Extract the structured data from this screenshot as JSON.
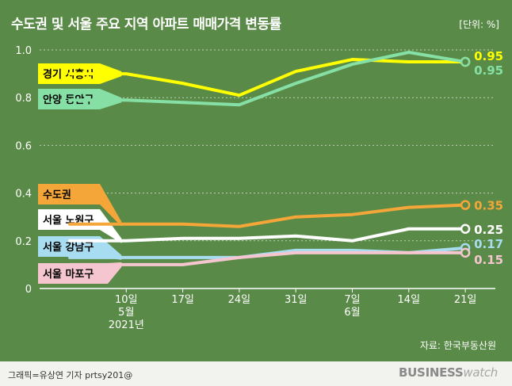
{
  "title": "수도권 및 서울 주요 지역 아파트 매매가격 변동률",
  "unit": "[단위: %]",
  "source": "자료: 한국부동산원",
  "credit": "그래픽=유상연 기자 prtsy201@",
  "brand": {
    "part1": "BUSINESS",
    "part2": "watch"
  },
  "colors": {
    "background": "#5a8a47",
    "footer": "#f2f2ee"
  },
  "chart_data": {
    "type": "line",
    "x_ticks": [
      {
        "lines": [
          "10일",
          "5월",
          "2021년"
        ]
      },
      {
        "lines": [
          "17일"
        ]
      },
      {
        "lines": [
          "24일"
        ]
      },
      {
        "lines": [
          "31일"
        ]
      },
      {
        "lines": [
          "7일",
          "6월"
        ]
      },
      {
        "lines": [
          "14일"
        ]
      },
      {
        "lines": [
          "21일"
        ]
      }
    ],
    "x": [
      "2021-05-03",
      "2021-05-10",
      "2021-05-17",
      "2021-05-24",
      "2021-05-31",
      "2021-06-07",
      "2021-06-14",
      "2021-06-21"
    ],
    "y_ticks": [
      "0",
      "0.2",
      "0.4",
      "0.6",
      "0.8",
      "1.0"
    ],
    "ylim": [
      0,
      1.0
    ],
    "grid": true,
    "series": [
      {
        "name": "경기 시흥시",
        "color": "#ffff00",
        "label_bg": "#ffff00",
        "label_color": "#000000",
        "end_label": "0.95",
        "end_color": "#ffff00",
        "values": [
          0.9,
          0.9,
          0.86,
          0.81,
          0.91,
          0.96,
          0.95,
          0.95
        ]
      },
      {
        "name": "안양 동안구",
        "color": "#86e0a6",
        "label_bg": "#86e0a6",
        "label_color": "#000000",
        "end_label": "0.95",
        "end_color": "#86e0a6",
        "values": [
          0.79,
          0.79,
          0.78,
          0.77,
          0.86,
          0.94,
          0.99,
          0.95
        ]
      },
      {
        "name": "수도권",
        "color": "#f5a638",
        "label_bg": "#f5a638",
        "label_color": "#000000",
        "end_label": "0.35",
        "end_color": "#f5a638",
        "values": [
          0.27,
          0.27,
          0.27,
          0.26,
          0.3,
          0.31,
          0.34,
          0.35
        ]
      },
      {
        "name": "서울 노원구",
        "color": "#ffffff",
        "label_bg": "#ffffff",
        "label_color": "#000000",
        "end_label": "0.25",
        "end_color": "#ffffff",
        "values": [
          0.2,
          0.2,
          0.21,
          0.21,
          0.22,
          0.2,
          0.25,
          0.25
        ]
      },
      {
        "name": "서울 강남구",
        "color": "#a8dcf0",
        "label_bg": "#a8dcf0",
        "label_color": "#000000",
        "end_label": "0.17",
        "end_color": "#a8dcf0",
        "values": [
          0.13,
          0.13,
          0.13,
          0.13,
          0.16,
          0.16,
          0.15,
          0.17
        ]
      },
      {
        "name": "서울 마포구",
        "color": "#f5c6d0",
        "label_bg": "#f5c6d0",
        "label_color": "#000000",
        "end_label": "0.15",
        "end_color": "#f5c6d0",
        "values": [
          0.1,
          0.1,
          0.1,
          0.13,
          0.15,
          0.15,
          0.15,
          0.15
        ]
      }
    ]
  }
}
